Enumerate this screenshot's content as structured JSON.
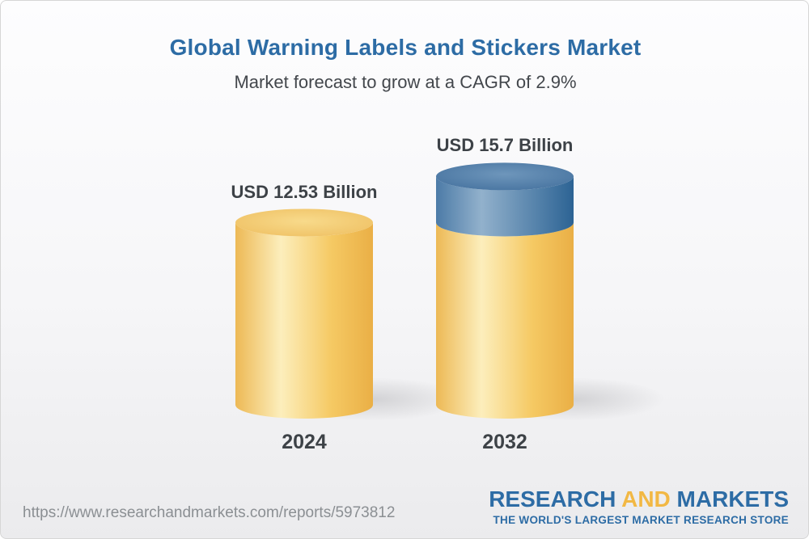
{
  "header": {
    "title": "Global Warning Labels and Stickers Market",
    "subtitle": "Market forecast to grow at a CAGR of 2.9%"
  },
  "chart_data": {
    "type": "bar",
    "variant": "3d-cylinder",
    "title": "Global Warning Labels and Stickers Market",
    "subtitle": "Market forecast to grow at a CAGR of 2.9%",
    "cagr": "2.9%",
    "unit": "USD Billion",
    "categories": [
      "2024",
      "2032"
    ],
    "values": [
      12.53,
      15.7
    ],
    "xlabel": "",
    "ylabel": "",
    "legend": null,
    "grid": false,
    "bars": [
      {
        "category": "2024",
        "value": 12.53,
        "value_label": "USD 12.53 Billion",
        "segments": [
          {
            "value": 12.53,
            "color_key": "gold"
          }
        ]
      },
      {
        "category": "2032",
        "value": 15.7,
        "value_label": "USD 15.7 Billion",
        "segments": [
          {
            "value": 12.53,
            "color_key": "gold"
          },
          {
            "value": 3.17,
            "color_key": "blue"
          }
        ]
      }
    ]
  },
  "footer": {
    "url": "https://www.researchandmarkets.com/reports/5973812",
    "logo": {
      "word1": "RESEARCH",
      "word2": "AND",
      "word3": "MARKETS",
      "tagline": "THE WORLD'S LARGEST MARKET RESEARCH STORE"
    }
  },
  "colors": {
    "title_blue": "#2d6ca5",
    "text_dark": "#3d4247",
    "url_gray": "#8b8f93",
    "logo_blue": "#2d6ca5",
    "logo_gold": "#f2b844",
    "gold_side_dark": "#eaaf46",
    "gold_side_light": "#fceebc",
    "blue_side_dark": "#2c6394",
    "blue_side_light": "#92b1cc"
  }
}
